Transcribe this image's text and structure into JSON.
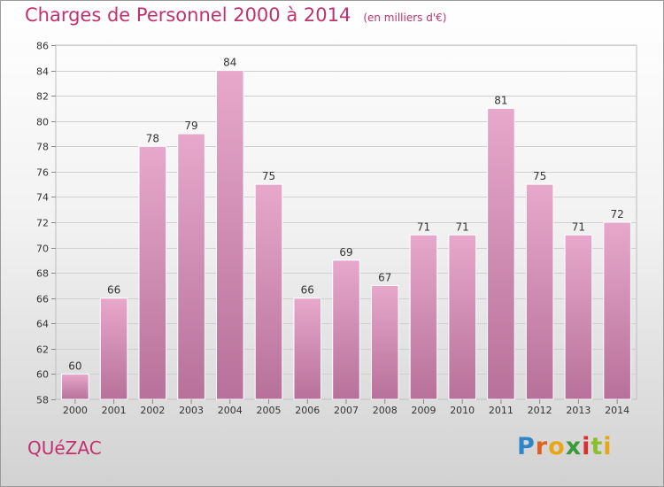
{
  "title": "Charges de Personnel 2000 à 2014",
  "subtitle": "(en milliers d'€)",
  "commune": "QUéZAC",
  "logo": {
    "text": "Proxiti",
    "letters": [
      "P",
      "r",
      "o",
      "x",
      "i",
      "t",
      "i"
    ],
    "colors": [
      "#2d86c7",
      "#e0611d",
      "#e8a617",
      "#3a9a3a",
      "#d8302e",
      "#8cbf2c"
    ]
  },
  "colors": {
    "bar_light": "#e7a8cb",
    "bar_dark": "#b7719a",
    "title": "#c0326e",
    "grid": "#cfcfcf"
  },
  "chart_data": {
    "type": "bar",
    "title": "Charges de Personnel 2000 à 2014",
    "subtitle": "(en milliers d'€)",
    "categories": [
      "2000",
      "2001",
      "2002",
      "2003",
      "2004",
      "2005",
      "2006",
      "2007",
      "2008",
      "2009",
      "2010",
      "2011",
      "2012",
      "2013",
      "2014"
    ],
    "values": [
      60,
      66,
      78,
      79,
      84,
      75,
      66,
      69,
      67,
      71,
      71,
      81,
      75,
      71,
      72
    ],
    "ylim": [
      58,
      86
    ],
    "yticks": [
      58,
      60,
      62,
      64,
      66,
      68,
      70,
      72,
      74,
      76,
      78,
      80,
      82,
      84,
      86
    ],
    "grid": true,
    "data_labels": true
  }
}
